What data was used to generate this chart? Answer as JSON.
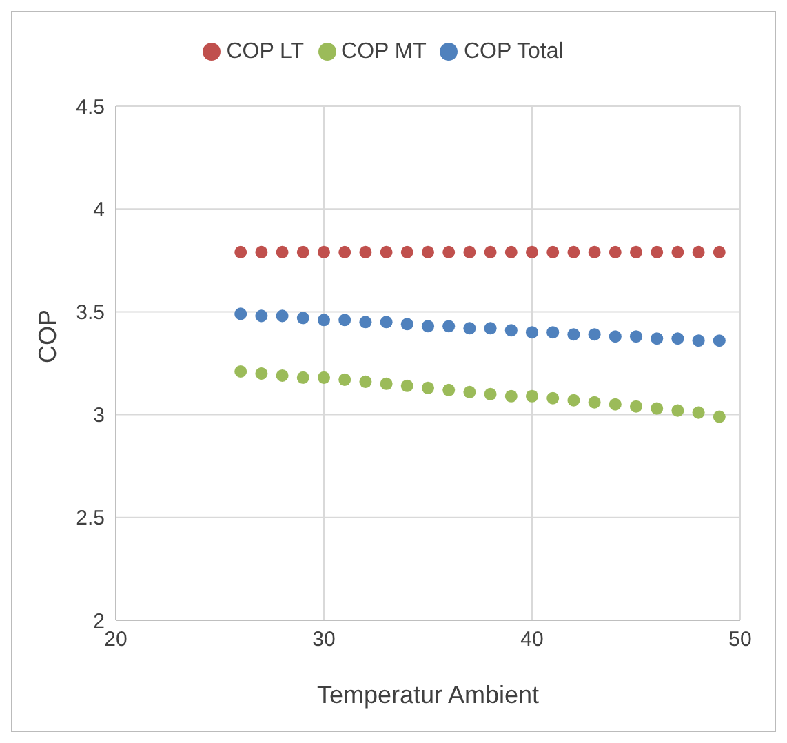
{
  "chart_data": {
    "type": "scatter",
    "xlabel": "Temperatur Ambient",
    "ylabel": "COP",
    "x": [
      26,
      27,
      28,
      29,
      30,
      31,
      32,
      33,
      34,
      35,
      36,
      37,
      38,
      39,
      40,
      41,
      42,
      43,
      44,
      45,
      46,
      47,
      48,
      49
    ],
    "series": [
      {
        "name": "COP Total",
        "color": "#4f81bd",
        "values": [
          3.49,
          3.48,
          3.48,
          3.47,
          3.46,
          3.46,
          3.45,
          3.45,
          3.44,
          3.43,
          3.43,
          3.42,
          3.42,
          3.41,
          3.4,
          3.4,
          3.39,
          3.39,
          3.38,
          3.38,
          3.37,
          3.37,
          3.36,
          3.36
        ]
      },
      {
        "name": "COP LT",
        "color": "#c0504d",
        "values": [
          3.79,
          3.79,
          3.79,
          3.79,
          3.79,
          3.79,
          3.79,
          3.79,
          3.79,
          3.79,
          3.79,
          3.79,
          3.79,
          3.79,
          3.79,
          3.79,
          3.79,
          3.79,
          3.79,
          3.79,
          3.79,
          3.79,
          3.79,
          3.79
        ]
      },
      {
        "name": "COP MT",
        "color": "#9bbb59",
        "values": [
          3.21,
          3.2,
          3.19,
          3.18,
          3.18,
          3.17,
          3.16,
          3.15,
          3.14,
          3.13,
          3.12,
          3.11,
          3.1,
          3.09,
          3.09,
          3.08,
          3.07,
          3.06,
          3.05,
          3.04,
          3.03,
          3.02,
          3.01,
          2.99
        ]
      }
    ],
    "xlim": [
      20,
      50
    ],
    "xticks": [
      20,
      30,
      40,
      50
    ],
    "ylim": [
      2,
      4.5
    ],
    "yticks": [
      2,
      2.5,
      3,
      3.5,
      4,
      4.5
    ],
    "grid": true,
    "legend": "top",
    "marker": "circle"
  }
}
